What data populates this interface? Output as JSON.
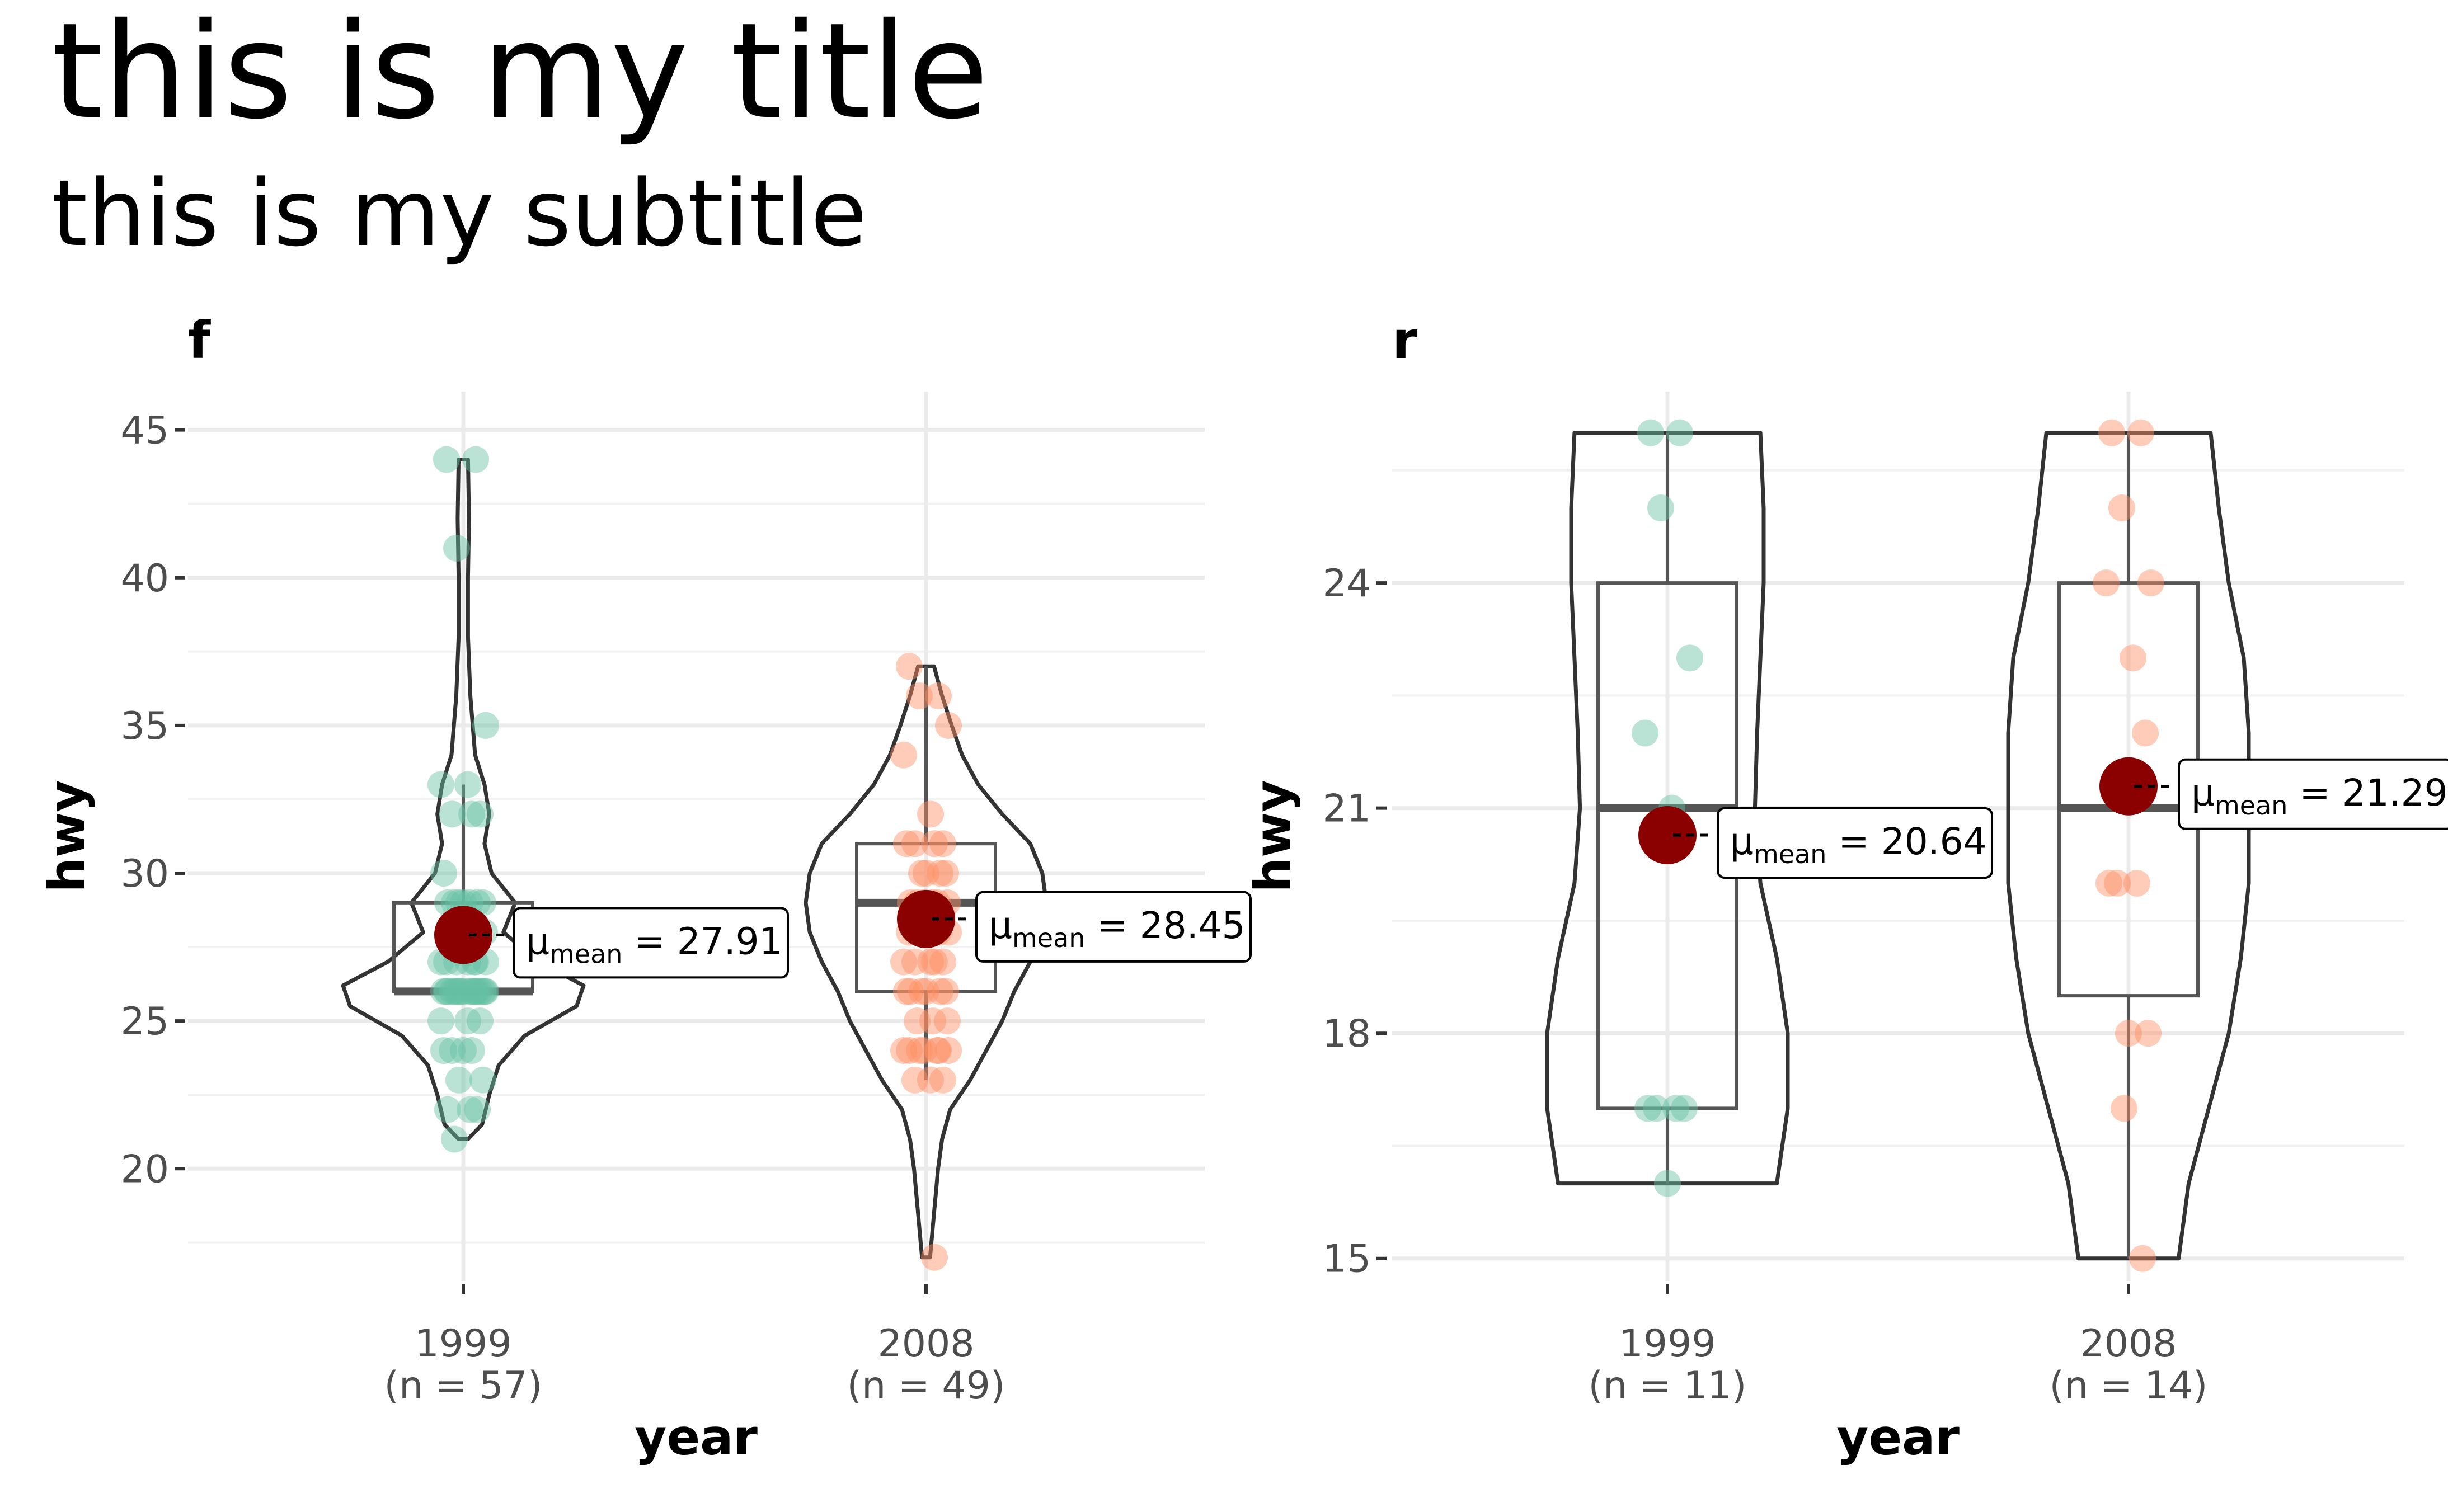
{
  "title": "this is my title",
  "subtitle": "this is my subtitle",
  "chart_data": [
    {
      "type": "violin-box-scatter",
      "facet": "f",
      "xlabel": "year",
      "ylabel": "hwy",
      "ylim": [
        16.2,
        46.3
      ],
      "yticks": [
        20,
        25,
        30,
        35,
        40,
        45
      ],
      "grid": true,
      "categories": [
        {
          "label": "1999",
          "n_label": "(n = 57)",
          "point_color": "#66c2a5",
          "box": {
            "q1": 26,
            "median": 26,
            "q3": 29,
            "whisker_low": 26,
            "whisker_high": 33
          },
          "mean": 27.91,
          "mean_label_value": "27.91",
          "violin": [
            [
              21,
              0.1
            ],
            [
              21.5,
              0.4
            ],
            [
              22.5,
              0.55
            ],
            [
              23.5,
              0.75
            ],
            [
              24.5,
              1.3
            ],
            [
              25.5,
              2.4
            ],
            [
              26.2,
              2.55
            ],
            [
              27,
              1.6
            ],
            [
              28,
              0.85
            ],
            [
              29,
              1.1
            ],
            [
              30,
              0.6
            ],
            [
              31,
              0.45
            ],
            [
              32,
              0.55
            ],
            [
              33,
              0.45
            ],
            [
              34,
              0.25
            ],
            [
              36,
              0.15
            ],
            [
              38,
              0.1
            ],
            [
              40,
              0.1
            ],
            [
              42,
              0.12
            ],
            [
              44,
              0.1
            ]
          ],
          "points": [
            44,
            44,
            41,
            35,
            33,
            33,
            32,
            32,
            32,
            30,
            29,
            29,
            29,
            29,
            29,
            29,
            29,
            28,
            28,
            27,
            27,
            27,
            27,
            27,
            27,
            27,
            26,
            26,
            26,
            26,
            26,
            26,
            26,
            26,
            26,
            26,
            26,
            26,
            26,
            26,
            26,
            26,
            26,
            26,
            25,
            25,
            25,
            24,
            24,
            24,
            24,
            23,
            23,
            22,
            22,
            22,
            21
          ]
        },
        {
          "label": "2008",
          "n_label": "(n = 49)",
          "point_color": "#fc8d62",
          "box": {
            "q1": 26,
            "median": 29,
            "q3": 31,
            "whisker_low": 23,
            "whisker_high": 37
          },
          "mean": 28.45,
          "mean_label_value": "28.45",
          "violin": [
            [
              17,
              0.05
            ],
            [
              18.5,
              0.1
            ],
            [
              20,
              0.15
            ],
            [
              21,
              0.2
            ],
            [
              22,
              0.3
            ],
            [
              23,
              0.55
            ],
            [
              24,
              0.75
            ],
            [
              25,
              0.95
            ],
            [
              26,
              1.1
            ],
            [
              27,
              1.3
            ],
            [
              28,
              1.45
            ],
            [
              29,
              1.5
            ],
            [
              30,
              1.45
            ],
            [
              31,
              1.3
            ],
            [
              32,
              0.95
            ],
            [
              33,
              0.65
            ],
            [
              34,
              0.45
            ],
            [
              35,
              0.32
            ],
            [
              36,
              0.2
            ],
            [
              37,
              0.1
            ]
          ],
          "points": [
            37,
            36,
            36,
            35,
            34,
            32,
            31,
            31,
            31,
            31,
            30,
            30,
            30,
            30,
            29,
            29,
            29,
            29,
            29,
            29,
            28,
            28,
            28,
            28,
            27,
            27,
            27,
            27,
            27,
            26,
            26,
            26,
            26,
            26,
            26,
            25,
            25,
            25,
            24,
            24,
            24,
            24,
            24,
            24,
            24,
            23,
            23,
            23,
            17
          ]
        }
      ]
    },
    {
      "type": "violin-box-scatter",
      "facet": "r",
      "xlabel": "year",
      "ylabel": "hwy",
      "ylim": [
        14.7,
        26.55
      ],
      "yticks": [
        15,
        18,
        21,
        24
      ],
      "grid": true,
      "categories": [
        {
          "label": "1999",
          "n_label": "(n = 11)",
          "point_color": "#66c2a5",
          "box": {
            "q1": 17,
            "median": 21,
            "q3": 24,
            "whisker_low": 16,
            "whisker_high": 26
          },
          "mean": 20.64,
          "mean_label_value": "20.64",
          "violin": [
            [
              16,
              1.0
            ],
            [
              17,
              1.1
            ],
            [
              18,
              1.1
            ],
            [
              19,
              1.0
            ],
            [
              20,
              0.85
            ],
            [
              21,
              0.8
            ],
            [
              22,
              0.82
            ],
            [
              23,
              0.85
            ],
            [
              24,
              0.88
            ],
            [
              25,
              0.88
            ],
            [
              26,
              0.85
            ]
          ],
          "points": [
            26,
            26,
            25,
            23,
            22,
            21,
            17,
            17,
            17,
            17,
            16
          ]
        },
        {
          "label": "2008",
          "n_label": "(n = 14)",
          "point_color": "#fc8d62",
          "box": {
            "q1": 18.5,
            "median": 21,
            "q3": 24,
            "whisker_low": 15,
            "whisker_high": 26
          },
          "mean": 21.29,
          "mean_label_value": "21.29",
          "violin": [
            [
              15,
              0.5
            ],
            [
              16,
              0.6
            ],
            [
              17,
              0.8
            ],
            [
              18,
              1.0
            ],
            [
              19,
              1.12
            ],
            [
              20,
              1.2
            ],
            [
              21,
              1.2
            ],
            [
              22,
              1.2
            ],
            [
              23,
              1.15
            ],
            [
              24,
              1.0
            ],
            [
              25,
              0.9
            ],
            [
              26,
              0.82
            ]
          ],
          "points": [
            26,
            26,
            25,
            24,
            24,
            23,
            22,
            20,
            20,
            20,
            18,
            18,
            17,
            15
          ]
        }
      ]
    }
  ],
  "colors": {
    "mean_point": "#8b0000",
    "outline": "#333333",
    "grid_major": "#ebebeb",
    "grid_minor": "#f2f2f2",
    "tick_text": "#4d4d4d"
  }
}
